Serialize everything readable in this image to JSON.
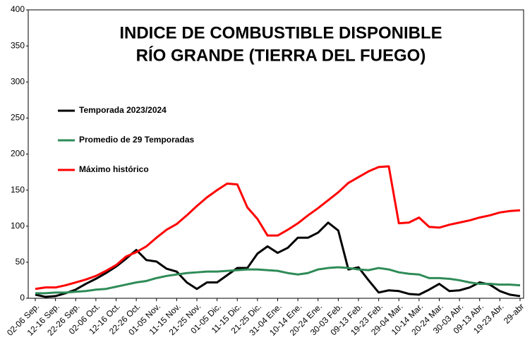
{
  "chart_data": {
    "type": "line",
    "title": "INDICE DE COMBUSTIBLE DISPONIBLE",
    "subtitle": "RÍO GRANDE (TIERRA DEL FUEGO)",
    "categories": [
      "02-06 Sep.",
      null,
      "12-16 Sep.",
      null,
      "22-26 Sep.",
      null,
      "02-06 Oct.",
      null,
      "12-16 Oct.",
      null,
      "22-26 Oct.",
      null,
      "01-05 Nov.",
      null,
      "11-15 Nov.",
      null,
      "21-25 Nov.",
      null,
      "01-05 Dic.",
      null,
      "11-15 Dic.",
      null,
      "21-25 Dic.",
      null,
      "31-04 Ene.",
      null,
      "10-14 Ene.",
      null,
      "20-24 Ene.",
      null,
      "30-03 Feb.",
      null,
      "09-13 Feb.",
      null,
      "19-23 Feb.",
      null,
      "29-04 Mar.",
      null,
      "10-14 Mar.",
      null,
      "20-24 Mar.",
      null,
      "30-03 Abr.",
      null,
      "09-13 Abr.",
      null,
      "19-23 Abr.",
      null,
      "29-abr"
    ],
    "series": [
      {
        "name": "Temporada 2023/2024",
        "color": "#000000",
        "values": [
          5,
          2,
          3,
          7,
          12,
          20,
          27,
          35,
          44,
          55,
          67,
          53,
          51,
          41,
          37,
          22,
          13,
          22,
          22,
          32,
          42,
          42,
          62,
          72,
          63,
          70,
          84,
          84,
          91,
          105,
          94,
          40,
          43,
          25,
          8,
          11,
          10,
          6,
          5,
          12,
          20,
          10,
          11,
          15,
          22,
          19,
          10,
          5,
          3
        ]
      },
      {
        "name": "Promedio de 29 Temporadas",
        "color": "#2e8b57",
        "values": [
          7,
          7,
          8,
          8,
          9,
          10,
          12,
          13,
          16,
          19,
          22,
          24,
          28,
          31,
          33,
          35,
          36,
          37,
          37,
          38,
          39,
          40,
          40,
          39,
          38,
          35,
          33,
          35,
          40,
          42,
          43,
          42,
          40,
          39,
          42,
          40,
          36,
          34,
          33,
          28,
          28,
          27,
          25,
          22,
          20,
          20,
          19,
          19,
          18
        ]
      },
      {
        "name": "Máximo histórico",
        "color": "#ff0000",
        "values": [
          13,
          15,
          15,
          18,
          22,
          26,
          31,
          38,
          46,
          58,
          64,
          72,
          84,
          95,
          103,
          115,
          128,
          140,
          150,
          159,
          158,
          126,
          110,
          87,
          87,
          95,
          104,
          115,
          125,
          136,
          147,
          160,
          168,
          176,
          182,
          183,
          104,
          105,
          112,
          99,
          98,
          102,
          105,
          108,
          112,
          115,
          119,
          121,
          122
        ]
      }
    ],
    "ylim": [
      0,
      400
    ],
    "yticks": [
      0,
      50,
      100,
      150,
      200,
      250,
      300,
      350,
      400
    ],
    "grid": false
  }
}
